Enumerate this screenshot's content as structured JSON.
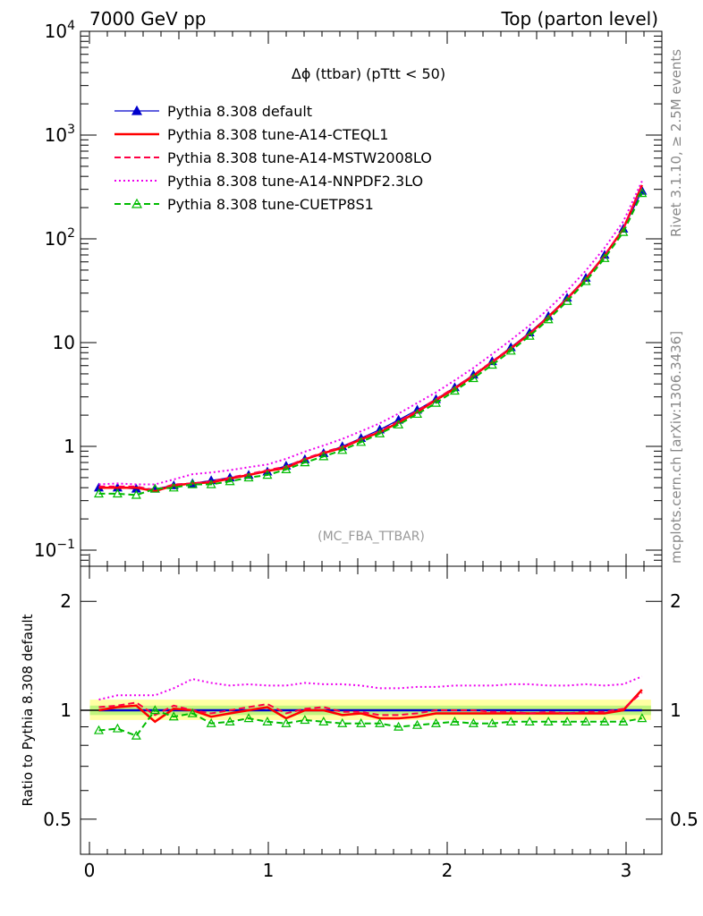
{
  "header": {
    "left": "7000 GeV pp",
    "right": "Top (parton level)"
  },
  "plot_title": "Δϕ (ttbar) (pTtt < 50)",
  "analysis_label": "(MC_FBA_TTBAR)",
  "side_text": {
    "rivet": "Rivet 3.1.10, ≥ 2.5M events",
    "mcplots": "mcplots.cern.ch [arXiv:1306.3436]"
  },
  "chart_data": [
    {
      "type": "line",
      "panel": "main",
      "y_scale": "log",
      "xlim": [
        -0.05,
        3.2
      ],
      "ylim": [
        0.07,
        10000
      ],
      "x_ticks": [
        "0",
        "1",
        "2",
        "3"
      ],
      "y_ticks": [
        {
          "value": 0.1,
          "base": "10",
          "exp": "−1"
        },
        {
          "value": 1,
          "label": "1"
        },
        {
          "value": 10,
          "label": "10"
        },
        {
          "value": 100,
          "base": "10",
          "exp": "2"
        },
        {
          "value": 1000,
          "base": "10",
          "exp": "3"
        },
        {
          "value": 10000,
          "base": "10",
          "exp": "4"
        }
      ],
      "x": [
        0.0524,
        0.1571,
        0.2618,
        0.3665,
        0.4712,
        0.576,
        0.6807,
        0.7854,
        0.8901,
        0.9948,
        1.0996,
        1.2043,
        1.309,
        1.4137,
        1.5184,
        1.6232,
        1.7279,
        1.8326,
        1.9373,
        2.042,
        2.1468,
        2.2515,
        2.3562,
        2.4609,
        2.5656,
        2.6704,
        2.7751,
        2.8798,
        2.9845,
        3.0892
      ],
      "series": [
        {
          "name": "Pythia 8.308 default",
          "color": "#0000cc",
          "style": "solid-triangle",
          "values": [
            0.4,
            0.4,
            0.39,
            0.39,
            0.42,
            0.44,
            0.47,
            0.5,
            0.53,
            0.57,
            0.65,
            0.75,
            0.86,
            1.0,
            1.2,
            1.45,
            1.8,
            2.25,
            2.85,
            3.7,
            4.9,
            6.6,
            9.0,
            12.5,
            18.0,
            27.0,
            42.0,
            70.0,
            125.0,
            290.0
          ]
        },
        {
          "name": "Pythia 8.308 tune-A14-CTEQL1",
          "color": "#ff0000",
          "style": "solid",
          "values": [
            0.4,
            0.4,
            0.4,
            0.37,
            0.42,
            0.44,
            0.45,
            0.49,
            0.53,
            0.58,
            0.62,
            0.75,
            0.86,
            0.97,
            1.17,
            1.37,
            1.7,
            2.15,
            2.8,
            3.6,
            4.8,
            6.5,
            8.8,
            12.2,
            17.7,
            26.5,
            41.2,
            68.9,
            125.0,
            330.0
          ]
        },
        {
          "name": "Pythia 8.308 tune-A14-MSTW2008LO",
          "color": "#ff0044",
          "style": "dashed",
          "values": [
            0.41,
            0.41,
            0.41,
            0.38,
            0.43,
            0.44,
            0.46,
            0.5,
            0.54,
            0.59,
            0.64,
            0.76,
            0.88,
            0.99,
            1.19,
            1.4,
            1.74,
            2.2,
            2.86,
            3.69,
            4.88,
            6.59,
            8.9,
            12.3,
            17.8,
            26.6,
            41.5,
            69.4,
            126.0,
            325.0
          ]
        },
        {
          "name": "Pythia 8.308 tune-A14-NNPDF2.3LO",
          "color": "#ee00ee",
          "style": "dotted",
          "values": [
            0.43,
            0.44,
            0.43,
            0.43,
            0.48,
            0.54,
            0.56,
            0.59,
            0.63,
            0.67,
            0.76,
            0.89,
            1.02,
            1.18,
            1.4,
            1.67,
            2.07,
            2.62,
            3.32,
            4.33,
            5.72,
            7.74,
            10.6,
            14.7,
            21.1,
            31.6,
            49.4,
            82.0,
            147.0,
            360.0
          ]
        },
        {
          "name": "Pythia 8.308 tune-CUETP8S1",
          "color": "#00bb00",
          "style": "dashed-open-triangle",
          "values": [
            0.35,
            0.35,
            0.34,
            0.39,
            0.4,
            0.43,
            0.43,
            0.46,
            0.5,
            0.53,
            0.6,
            0.7,
            0.8,
            0.92,
            1.1,
            1.33,
            1.62,
            2.05,
            2.62,
            3.43,
            4.53,
            6.1,
            8.33,
            11.6,
            16.7,
            25.1,
            39.0,
            65.0,
            116.0,
            275.0
          ]
        }
      ]
    },
    {
      "type": "line",
      "panel": "ratio",
      "y_scale": "log",
      "ylabel": "Ratio to Pythia 8.308 default",
      "xlim": [
        -0.05,
        3.2
      ],
      "ylim": [
        0.4,
        2.5
      ],
      "x_ticks": [
        "0",
        "1",
        "2",
        "3"
      ],
      "y_ticks": [
        "0.5",
        "1",
        "2"
      ],
      "x": [
        0.0524,
        0.1571,
        0.2618,
        0.3665,
        0.4712,
        0.576,
        0.6807,
        0.7854,
        0.8901,
        0.9948,
        1.0996,
        1.2043,
        1.309,
        1.4137,
        1.5184,
        1.6232,
        1.7279,
        1.8326,
        1.9373,
        2.042,
        2.1468,
        2.2515,
        2.3562,
        2.4609,
        2.5656,
        2.6704,
        2.7751,
        2.8798,
        2.9845,
        3.0892
      ],
      "series": [
        {
          "name": "Pythia 8.308 default",
          "color": "#0000cc",
          "style": "solid",
          "values": [
            1,
            1,
            1,
            1,
            1,
            1,
            1,
            1,
            1,
            1,
            1,
            1,
            1,
            1,
            1,
            1,
            1,
            1,
            1,
            1,
            1,
            1,
            1,
            1,
            1,
            1,
            1,
            1,
            1,
            1
          ]
        },
        {
          "name": "Pythia 8.308 tune-A14-CTEQL1",
          "color": "#ff0000",
          "style": "solid",
          "values": [
            1.0,
            1.02,
            1.03,
            0.93,
            1.01,
            1.0,
            0.96,
            0.98,
            1.0,
            1.02,
            0.95,
            1.0,
            1.0,
            0.97,
            0.98,
            0.95,
            0.95,
            0.96,
            0.98,
            0.98,
            0.98,
            0.98,
            0.98,
            0.98,
            0.98,
            0.98,
            0.98,
            0.98,
            1.0,
            1.14
          ]
        },
        {
          "name": "Pythia 8.308 tune-A14-MSTW2008LO",
          "color": "#ff0044",
          "style": "dashed",
          "values": [
            1.02,
            1.03,
            1.05,
            0.97,
            1.03,
            1.0,
            0.98,
            1.0,
            1.02,
            1.04,
            0.98,
            1.01,
            1.02,
            0.99,
            0.99,
            0.97,
            0.97,
            0.98,
            1.0,
            1.0,
            1.0,
            0.99,
            0.99,
            0.98,
            0.99,
            0.98,
            0.99,
            0.99,
            1.01,
            1.12
          ]
        },
        {
          "name": "Pythia 8.308 tune-A14-NNPDF2.3LO",
          "color": "#ee00ee",
          "style": "dotted",
          "values": [
            1.07,
            1.1,
            1.1,
            1.1,
            1.15,
            1.22,
            1.19,
            1.17,
            1.18,
            1.17,
            1.17,
            1.19,
            1.18,
            1.18,
            1.17,
            1.15,
            1.15,
            1.16,
            1.16,
            1.17,
            1.17,
            1.17,
            1.18,
            1.18,
            1.17,
            1.17,
            1.18,
            1.17,
            1.18,
            1.24
          ]
        },
        {
          "name": "Pythia 8.308 tune-CUETP8S1",
          "color": "#00bb00",
          "style": "dashed-open-triangle",
          "values": [
            0.88,
            0.89,
            0.85,
            1.0,
            0.96,
            0.98,
            0.92,
            0.93,
            0.95,
            0.93,
            0.92,
            0.94,
            0.93,
            0.92,
            0.92,
            0.92,
            0.9,
            0.91,
            0.92,
            0.93,
            0.92,
            0.92,
            0.93,
            0.93,
            0.93,
            0.93,
            0.93,
            0.93,
            0.93,
            0.95
          ]
        }
      ]
    }
  ]
}
